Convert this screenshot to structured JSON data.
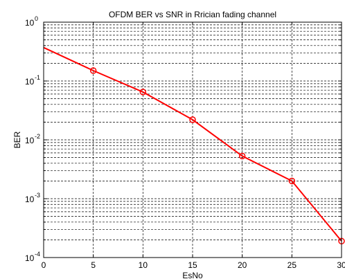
{
  "chart_data": {
    "type": "line",
    "title": "OFDM BER vs SNR in Rrician fading channel",
    "xlabel": "EsNo",
    "ylabel": "BER",
    "xlim": [
      0,
      30
    ],
    "ylim": [
      0.0001,
      1
    ],
    "yscale": "log",
    "grid": "on (major and minor, dashed)",
    "x_ticks": [
      "0",
      "5",
      "10",
      "15",
      "20",
      "25",
      "30"
    ],
    "y_ticks": [
      {
        "base": "10",
        "exp": "-4",
        "value": 0.0001
      },
      {
        "base": "10",
        "exp": "-3",
        "value": 0.001
      },
      {
        "base": "10",
        "exp": "-2",
        "value": 0.01
      },
      {
        "base": "10",
        "exp": "-1",
        "value": 0.1
      },
      {
        "base": "10",
        "exp": "0",
        "value": 1
      }
    ],
    "series": [
      {
        "color": "#ff0000",
        "marker": "circle",
        "x": [
          0,
          5,
          10,
          15,
          20,
          25,
          30
        ],
        "y": [
          0.37,
          0.15,
          0.065,
          0.022,
          0.0053,
          0.002,
          0.00019
        ],
        "markers_at": [
          5,
          10,
          15,
          20,
          25,
          30
        ]
      }
    ]
  }
}
